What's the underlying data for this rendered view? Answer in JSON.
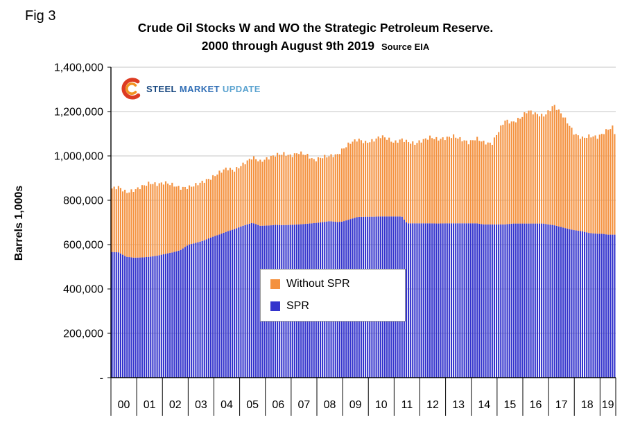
{
  "fig_label": "Fig 3",
  "logo": {
    "steel": "STEEL",
    "market": "MARKET",
    "update": "UPDATE"
  },
  "chart_data": {
    "type": "area",
    "title": "Crude Oil Stocks W and WO the Strategic Petroleum Reserve.",
    "subtitle": "2000 through August 9th 2019",
    "source": "Source EIA",
    "ylabel": "Barrels 1,000s",
    "ylim": [
      0,
      1400000
    ],
    "ytick_step": 200000,
    "ytick_labels": [
      "-",
      "200,000",
      "400,000",
      "600,000",
      "800,000",
      "1,000,000",
      "1,200,000",
      "1,400,000"
    ],
    "xtick_labels": [
      "00",
      "01",
      "02",
      "03",
      "04",
      "05",
      "06",
      "07",
      "08",
      "09",
      "10",
      "11",
      "12",
      "13",
      "14",
      "15",
      "16",
      "17",
      "18",
      "19"
    ],
    "x_range": [
      2000,
      2019.61
    ],
    "grid": true,
    "legend_position": "center",
    "legend": [
      {
        "label": "Without SPR",
        "color": "#F4913E"
      },
      {
        "label": "SPR",
        "color": "#3333CC"
      }
    ],
    "colors": {
      "grid": "#C6C6C6",
      "axis": "#000000",
      "background": "#FFFFFF"
    },
    "texture_noise": 8000,
    "anchors": {
      "x": [
        2000.0,
        2000.3,
        2000.6,
        2000.9,
        2001.2,
        2001.5,
        2001.8,
        2002.1,
        2002.4,
        2002.7,
        2003.0,
        2003.3,
        2003.6,
        2003.9,
        2004.2,
        2004.5,
        2004.8,
        2005.1,
        2005.4,
        2005.5,
        2005.8,
        2006.1,
        2006.4,
        2006.7,
        2007.0,
        2007.3,
        2007.6,
        2007.9,
        2008.2,
        2008.5,
        2008.8,
        2009.0,
        2009.3,
        2009.6,
        2009.9,
        2010.2,
        2010.5,
        2010.8,
        2011.0,
        2011.3,
        2011.5,
        2011.8,
        2012.1,
        2012.4,
        2012.7,
        2013.0,
        2013.3,
        2013.6,
        2013.9,
        2014.2,
        2014.5,
        2014.8,
        2015.0,
        2015.3,
        2015.6,
        2015.9,
        2016.2,
        2016.5,
        2016.8,
        2017.0,
        2017.2,
        2017.5,
        2017.8,
        2018.0,
        2018.3,
        2018.6,
        2018.9,
        2019.1,
        2019.3,
        2019.5,
        2019.61
      ],
      "spr": [
        567000,
        565000,
        545000,
        541000,
        542000,
        545000,
        550000,
        558000,
        565000,
        575000,
        599000,
        608000,
        618000,
        633000,
        645000,
        659000,
        670000,
        684000,
        695000,
        698000,
        685000,
        686000,
        689000,
        688000,
        689000,
        691000,
        694000,
        697000,
        701000,
        706000,
        702000,
        704000,
        715000,
        725000,
        726000,
        726000,
        727000,
        727000,
        727000,
        727000,
        696000,
        696000,
        696000,
        696000,
        695000,
        696000,
        696000,
        696000,
        696000,
        696000,
        691000,
        691000,
        691000,
        691000,
        695000,
        695000,
        695000,
        695000,
        695000,
        691000,
        688000,
        679000,
        670000,
        665000,
        660000,
        652000,
        649000,
        649000,
        645000,
        645000,
        645000
      ],
      "without_spr": [
        285000,
        295000,
        290000,
        304000,
        320000,
        333000,
        322000,
        322000,
        305000,
        280000,
        259000,
        262000,
        267000,
        267000,
        280000,
        286000,
        265000,
        276000,
        290000,
        297000,
        290000,
        304000,
        316000,
        322000,
        311000,
        324000,
        311000,
        283000,
        294000,
        294000,
        303000,
        326000,
        345000,
        350000,
        334000,
        344000,
        363000,
        348000,
        333000,
        348000,
        369000,
        359000,
        374000,
        389000,
        380000,
        384000,
        394000,
        379000,
        364000,
        384000,
        369000,
        364000,
        409000,
        469000,
        455000,
        475000,
        510000,
        495000,
        485000,
        509000,
        542000,
        511000,
        470000,
        435000,
        420000,
        438000,
        436000,
        451000,
        475000,
        485000,
        445000
      ]
    }
  }
}
